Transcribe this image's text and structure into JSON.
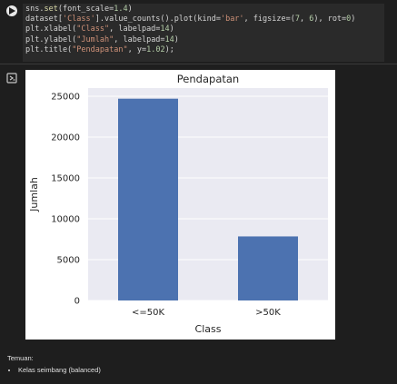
{
  "code": {
    "lines": [
      [
        {
          "t": "sns",
          "c": ""
        },
        {
          "t": ".",
          "c": ""
        },
        {
          "t": "set",
          "c": "f"
        },
        {
          "t": "(font_scale=",
          "c": ""
        },
        {
          "t": "1.4",
          "c": "n"
        },
        {
          "t": ")",
          "c": ""
        }
      ],
      [
        {
          "t": "dataset[",
          "c": ""
        },
        {
          "t": "'Class'",
          "c": "s"
        },
        {
          "t": "].value_counts().plot(kind=",
          "c": ""
        },
        {
          "t": "'bar'",
          "c": "s"
        },
        {
          "t": ", figsize=(",
          "c": ""
        },
        {
          "t": "7",
          "c": "n"
        },
        {
          "t": ", ",
          "c": ""
        },
        {
          "t": "6",
          "c": "n"
        },
        {
          "t": "), rot=",
          "c": ""
        },
        {
          "t": "0",
          "c": "n"
        },
        {
          "t": ")",
          "c": ""
        }
      ],
      [
        {
          "t": "plt.xlabel(",
          "c": ""
        },
        {
          "t": "\"Class\"",
          "c": "s"
        },
        {
          "t": ", labelpad=",
          "c": ""
        },
        {
          "t": "14",
          "c": "n"
        },
        {
          "t": ")",
          "c": ""
        }
      ],
      [
        {
          "t": "plt.ylabel(",
          "c": ""
        },
        {
          "t": "\"Jumlah\"",
          "c": "s"
        },
        {
          "t": ", labelpad=",
          "c": ""
        },
        {
          "t": "14",
          "c": "n"
        },
        {
          "t": ")",
          "c": ""
        }
      ],
      [
        {
          "t": "plt.title(",
          "c": ""
        },
        {
          "t": "\"Pendapatan\"",
          "c": "s"
        },
        {
          "t": ", y=",
          "c": ""
        },
        {
          "t": "1.02",
          "c": "n"
        },
        {
          "t": ");",
          "c": ""
        }
      ]
    ]
  },
  "chart_data": {
    "type": "bar",
    "title": "Pendapatan",
    "xlabel": "Class",
    "ylabel": "Jumlah",
    "categories": [
      "<=50K",
      ">50K"
    ],
    "values": [
      24700,
      7840
    ],
    "ylim": [
      0,
      26000
    ],
    "yticks": [
      0,
      5000,
      10000,
      15000,
      20000,
      25000
    ],
    "bar_color": "#4c72b0",
    "grid": true,
    "background": "#eaeaf2"
  },
  "notes": {
    "title": "Temuan:",
    "items": [
      "Kelas seimbang (balanced)"
    ]
  }
}
